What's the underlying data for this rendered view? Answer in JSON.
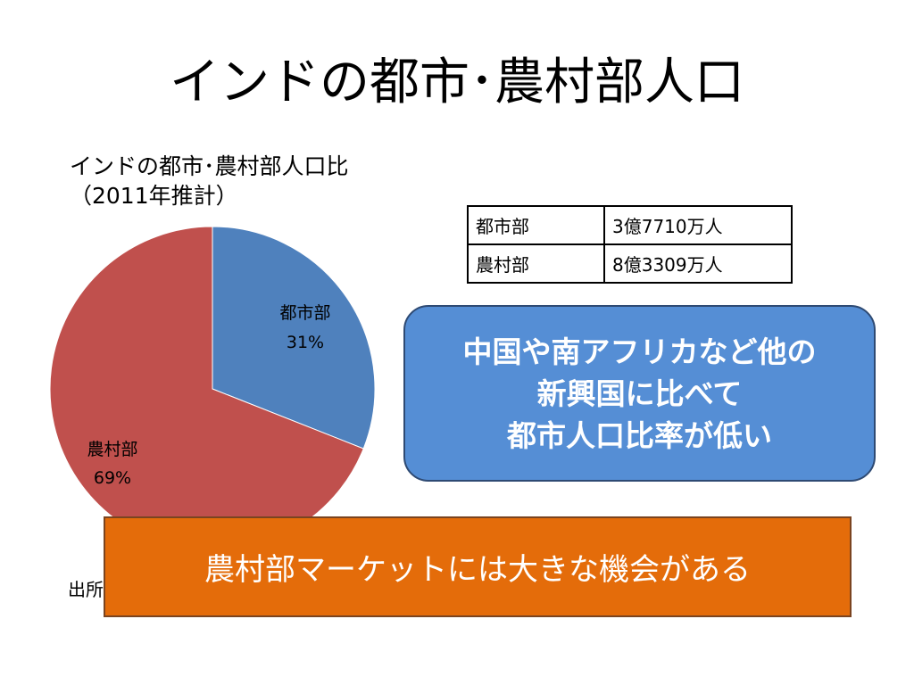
{
  "slide": {
    "title": "インドの都市･農村部人口"
  },
  "chart_data": {
    "type": "pie",
    "title_line1": "インドの都市･農村部人口比",
    "title_line2": "（2011年推計）",
    "slices": [
      {
        "label": "都市部",
        "value": 31,
        "percent_label": "31%",
        "color": "#4f81bd"
      },
      {
        "label": "農村部",
        "value": 69,
        "percent_label": "69%",
        "color": "#c0504d"
      }
    ],
    "source_text": "出所"
  },
  "table": {
    "rows": [
      {
        "area": "都市部",
        "population": "3億7710万人"
      },
      {
        "area": "農村部",
        "population": "8億3309万人"
      }
    ]
  },
  "callout": {
    "line1": "中国や南アフリカなど他の",
    "line2": "新興国に比べて",
    "line3": "都市人口比率が低い",
    "color": "#558ed5"
  },
  "banner": {
    "text": "農村部マーケットには大きな機会がある",
    "color": "#e46c0a"
  }
}
